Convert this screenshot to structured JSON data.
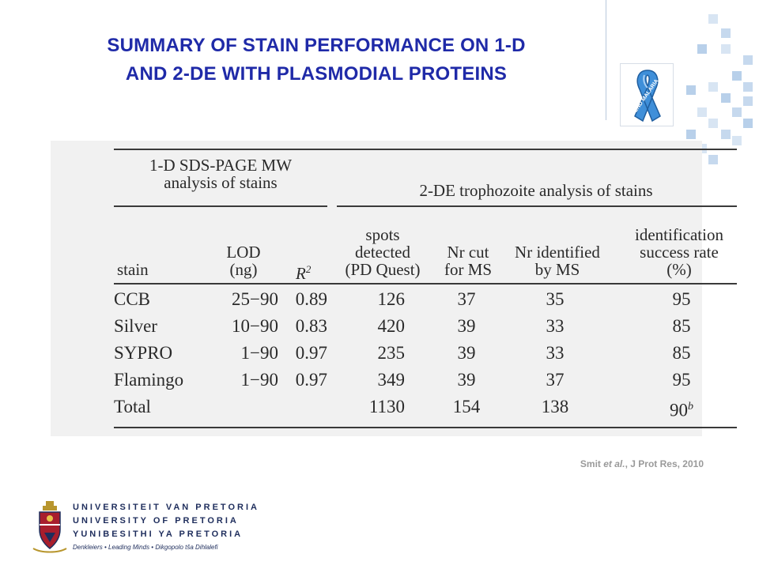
{
  "slide": {
    "title_line1": "SUMMARY OF STAIN PERFORMANCE ON 1-D",
    "title_line2": "AND 2-DE WITH PLASMODIAL PROTEINS",
    "ribbon_text": "END MALARIA",
    "citation_author": "Smit ",
    "citation_etal": "et al.",
    "citation_rest": ", J Prot Res,  2010"
  },
  "colors": {
    "title": "#1f2aa8",
    "accent_squares": "#b8d0ea",
    "ribbon": "#3f8fd9"
  },
  "table": {
    "group1_line1": "1-D SDS-PAGE MW",
    "group1_line2": "analysis of stains",
    "group2": "2-DE trophozoite analysis of stains",
    "columns": {
      "stain": "stain",
      "lod_line1": "LOD",
      "lod_line2": "(ng)",
      "r2": "R",
      "r2_sup": "2",
      "spots_line1": "spots",
      "spots_line2": "detected",
      "spots_line3": "(PD Quest)",
      "nrcut_line1": "Nr cut",
      "nrcut_line2": "for MS",
      "nrid_line1": "Nr identified",
      "nrid_line2": "by MS",
      "succ_line1": "identification",
      "succ_line2": "success rate",
      "succ_line3": "(%)"
    },
    "rows": [
      {
        "stain": "CCB",
        "lod": "25−90",
        "r2": "0.89",
        "spots": "126",
        "cut": "37",
        "ident": "35",
        "rate": "95",
        "rate_sup": ""
      },
      {
        "stain": "Silver",
        "lod": "10−90",
        "r2": "0.83",
        "spots": "420",
        "cut": "39",
        "ident": "33",
        "rate": "85",
        "rate_sup": ""
      },
      {
        "stain": "SYPRO",
        "lod": "1−90",
        "r2": "0.97",
        "spots": "235",
        "cut": "39",
        "ident": "33",
        "rate": "85",
        "rate_sup": ""
      },
      {
        "stain": "Flamingo",
        "lod": "1−90",
        "r2": "0.97",
        "spots": "349",
        "cut": "39",
        "ident": "37",
        "rate": "95",
        "rate_sup": ""
      },
      {
        "stain": "Total",
        "lod": "",
        "r2": "",
        "spots": "1130",
        "cut": "154",
        "ident": "138",
        "rate": "90",
        "rate_sup": "b"
      }
    ]
  },
  "logo": {
    "line1": "UNIVERSITEIT VAN PRETORIA",
    "line2": "UNIVERSITY OF PRETORIA",
    "line3": "YUNIBESITHI YA PRETORIA",
    "tagline": "Denkleiers • Leading Minds • Dikgopolo tša Dihlalefi"
  }
}
